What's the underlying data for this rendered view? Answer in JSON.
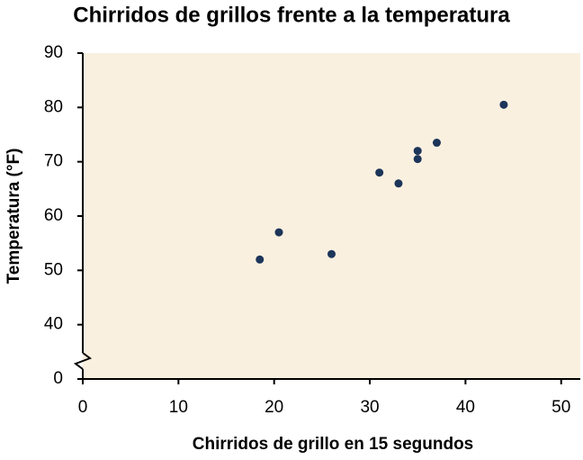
{
  "chart_data": {
    "type": "scatter",
    "title": "Chirridos de grillos frente a la temperatura",
    "x_label": "Chirridos de grillo en 15 segundos",
    "y_label": "Temperatura (°F)",
    "x": [
      18.5,
      20.5,
      26,
      31,
      33,
      35,
      35,
      37,
      44
    ],
    "values": [
      52,
      57,
      53,
      68,
      66,
      72,
      70.5,
      73.5,
      80.5
    ],
    "color": "#1c3559",
    "xlim": [
      0,
      52
    ],
    "xticks": [
      0,
      10,
      20,
      30,
      40,
      50
    ],
    "ylim": [
      0,
      90
    ],
    "yticks": [
      0,
      40,
      50,
      60,
      70,
      80,
      90
    ],
    "axis_break": true
  }
}
